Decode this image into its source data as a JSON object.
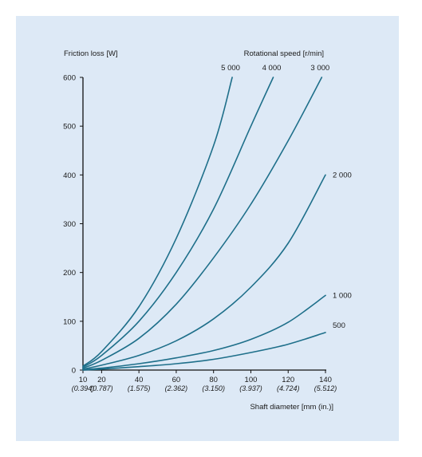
{
  "chart_data": {
    "type": "line",
    "ylabel": "Friction loss [W]",
    "legend_title": "Rotational speed [r/min]",
    "xlabel": "Shaft diameter [mm (in.)]",
    "xlim": [
      10,
      140
    ],
    "ylim": [
      0,
      600
    ],
    "x_ticks": [
      10,
      20,
      40,
      60,
      80,
      100,
      120,
      140
    ],
    "x_ticks_in": [
      "(0.394)",
      "(0.787)",
      "(1.575)",
      "(2.362)",
      "(3.150)",
      "(3.937)",
      "(4.724)",
      "(5.512)"
    ],
    "y_ticks": [
      0,
      100,
      200,
      300,
      400,
      500,
      600
    ],
    "grid": false,
    "line_color": "#1e6f8a",
    "series": [
      {
        "name": "5 000",
        "x": [
          10,
          20,
          40,
          60,
          80,
          90
        ],
        "y": [
          8,
          38,
          130,
          270,
          460,
          600
        ]
      },
      {
        "name": "4 000",
        "x": [
          10,
          20,
          40,
          60,
          80,
          100,
          112
        ],
        "y": [
          6,
          30,
          100,
          200,
          330,
          500,
          600
        ]
      },
      {
        "name": "3 000",
        "x": [
          10,
          20,
          40,
          60,
          80,
          100,
          120,
          138
        ],
        "y": [
          4,
          20,
          65,
          135,
          230,
          340,
          470,
          600
        ]
      },
      {
        "name": "2 000",
        "x": [
          10,
          20,
          40,
          60,
          80,
          100,
          120,
          140
        ],
        "y": [
          2,
          10,
          30,
          60,
          105,
          170,
          260,
          400
        ]
      },
      {
        "name": "1 000",
        "x": [
          10,
          20,
          40,
          60,
          80,
          100,
          120,
          140
        ],
        "y": [
          1,
          4,
          13,
          25,
          40,
          63,
          98,
          153
        ]
      },
      {
        "name": "500",
        "x": [
          10,
          20,
          40,
          60,
          80,
          100,
          120,
          140
        ],
        "y": [
          0,
          2,
          7,
          13,
          22,
          36,
          53,
          77
        ]
      }
    ]
  }
}
